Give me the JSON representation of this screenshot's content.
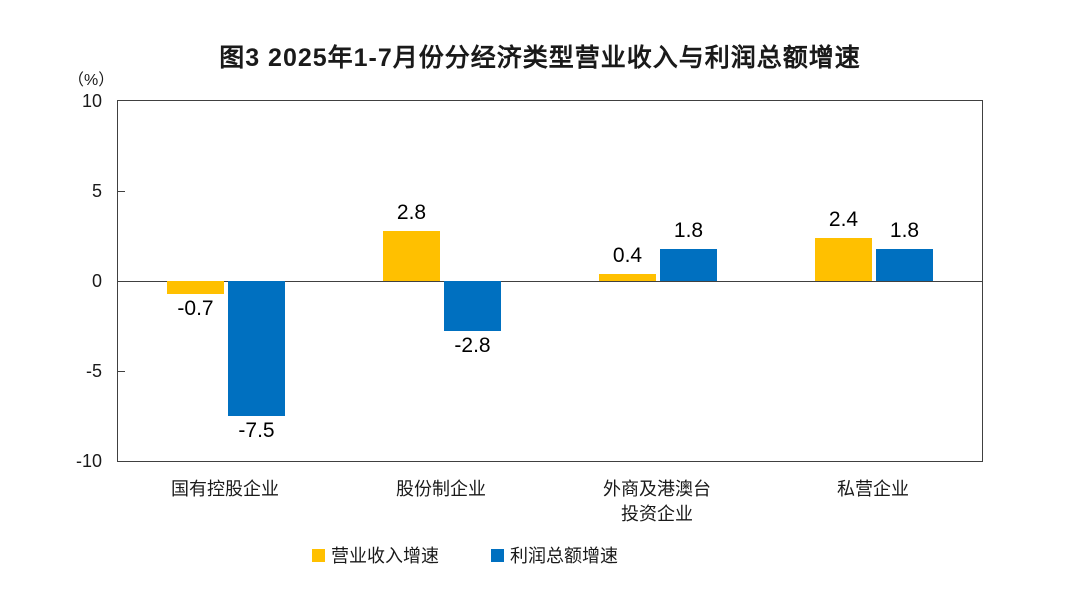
{
  "chart_data": {
    "type": "bar",
    "title": "图3 2025年1-7月份分经济类型营业收入与利润总额增速",
    "unit_label": "（%）",
    "categories": [
      "国有控股企业",
      "股份制企业",
      "外商及港澳台投资企业",
      "私营企业"
    ],
    "category_display": [
      "国有控股企业",
      "股份制企业",
      "外商及港澳台\n投资企业",
      "私营企业"
    ],
    "series": [
      {
        "key": "revenue",
        "name": "营业收入增速",
        "color": "#FFC000",
        "values": [
          -0.7,
          2.8,
          0.4,
          2.4
        ]
      },
      {
        "key": "profit",
        "name": "利润总额增速",
        "color": "#0070C0",
        "values": [
          -7.5,
          -2.8,
          1.8,
          1.8
        ]
      }
    ],
    "value_labels": [
      [
        "-0.7",
        "2.8",
        "0.4",
        "2.4"
      ],
      [
        "-7.5",
        "-2.8",
        "1.8",
        "1.8"
      ]
    ],
    "ylabel": "（%）",
    "ylim": [
      -10,
      10
    ],
    "yticks": [
      10,
      5,
      0,
      -5,
      -10
    ],
    "grid": false,
    "legend_position": "bottom",
    "axis_color": "#404040",
    "background_color": "#ffffff"
  }
}
